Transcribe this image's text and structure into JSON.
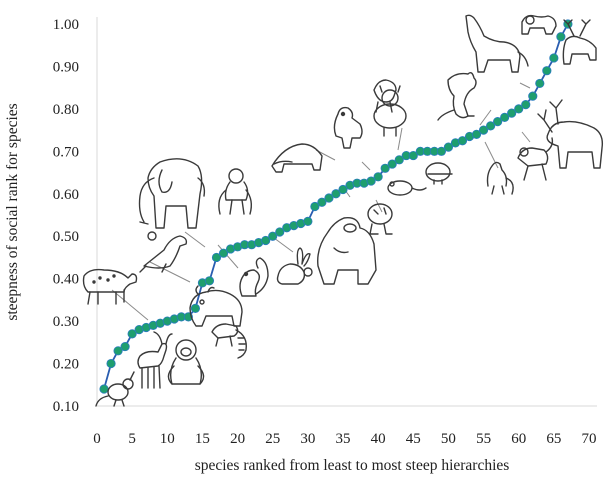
{
  "chart_data": {
    "type": "line",
    "title": "",
    "xlabel": "species ranked from least to most steep hierarchies",
    "ylabel": "steepness of social rank for species",
    "xlim": [
      0,
      70
    ],
    "ylim": [
      0.1,
      1.0
    ],
    "x_ticks": [
      "0",
      "5",
      "10",
      "15",
      "20",
      "25",
      "30",
      "35",
      "40",
      "45",
      "50",
      "55",
      "60",
      "65",
      "70"
    ],
    "y_ticks": [
      "0.10",
      "0.20",
      "0.30",
      "0.40",
      "0.50",
      "0.60",
      "0.70",
      "0.80",
      "0.90",
      "1.00"
    ],
    "grid": false,
    "legend": "none",
    "line_color": "#2a5db0",
    "marker_color": "#1e9e6f",
    "marker_edge": "#2a7cc0",
    "series": [
      {
        "x": [
          1,
          2,
          3,
          4,
          5,
          6,
          7,
          8,
          9,
          10,
          11,
          12,
          13,
          14,
          15,
          16,
          17,
          18,
          19,
          20,
          21,
          22,
          23,
          24,
          25,
          26,
          27,
          28,
          29,
          30,
          31,
          32,
          33,
          34,
          35,
          36,
          37,
          38,
          39,
          40,
          41,
          42,
          43,
          44,
          45,
          46,
          47,
          48,
          49,
          50,
          51,
          52,
          53,
          54,
          55,
          56,
          57,
          58,
          59,
          60,
          61,
          62,
          63,
          64,
          65,
          66,
          67
        ],
        "values": [
          0.14,
          0.2,
          0.23,
          0.24,
          0.27,
          0.28,
          0.285,
          0.29,
          0.295,
          0.3,
          0.305,
          0.31,
          0.31,
          0.33,
          0.39,
          0.395,
          0.45,
          0.46,
          0.47,
          0.475,
          0.48,
          0.48,
          0.485,
          0.49,
          0.5,
          0.51,
          0.52,
          0.525,
          0.53,
          0.535,
          0.57,
          0.58,
          0.59,
          0.6,
          0.61,
          0.62,
          0.625,
          0.625,
          0.63,
          0.64,
          0.66,
          0.67,
          0.68,
          0.69,
          0.69,
          0.7,
          0.7,
          0.7,
          0.7,
          0.71,
          0.72,
          0.725,
          0.735,
          0.74,
          0.75,
          0.76,
          0.77,
          0.78,
          0.79,
          0.8,
          0.81,
          0.83,
          0.86,
          0.89,
          0.92,
          0.97,
          1.0
        ]
      }
    ],
    "illustrations": [
      "kangaroo-rat-icon",
      "mountain-goat-icon",
      "gorilla-sitting-icon",
      "hyena-icon",
      "sea-lion-icon",
      "elephant-icon",
      "bison-icon",
      "lemur-icon",
      "squirrel-icon",
      "rabbit-icon",
      "chimpanzee-icon",
      "badger-icon",
      "gorilla-icon",
      "macaque-icon",
      "dog-icon",
      "tiger-cub-icon",
      "mouse-icon",
      "baboon-icon",
      "hamster-icon",
      "kangaroo-icon",
      "wolf-icon",
      "monkey-icon",
      "deer-icon",
      "reindeer-icon",
      "monkey-walking-icon",
      "spider-monkey-icon"
    ]
  }
}
